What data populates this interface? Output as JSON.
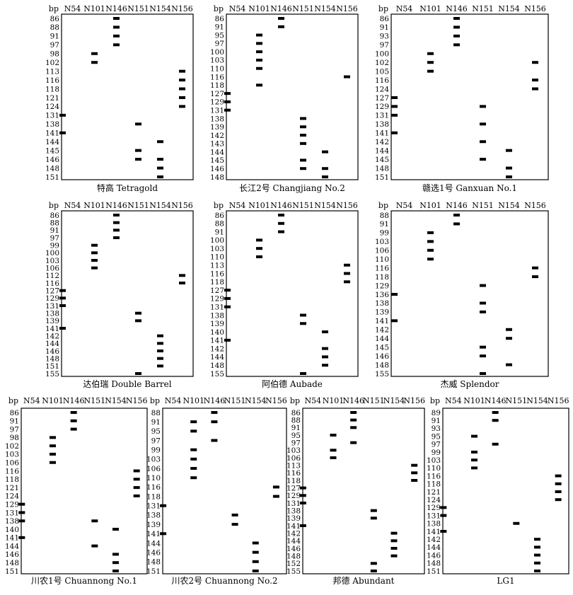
{
  "markers": {
    "header": [
      "bp",
      "N54",
      "N101",
      "N146",
      "N151",
      "N154",
      "N156"
    ]
  },
  "panels": [
    {
      "caption": "特高 Tetragold",
      "sizes": [
        "86",
        "88",
        "91",
        "97",
        "98",
        "102",
        "113",
        "116",
        "118",
        "121",
        "124",
        "131",
        "138",
        "141",
        "144",
        "145",
        "146",
        "148",
        "151"
      ],
      "bands": {
        "N54": [
          "131",
          "141"
        ],
        "N101": [
          "98",
          "102"
        ],
        "N146": [
          "86",
          "88",
          "91",
          "97"
        ],
        "N151": [
          "138",
          "145",
          "146"
        ],
        "N154": [
          "144",
          "146",
          "148",
          "151"
        ],
        "N156": [
          "113",
          "116",
          "118",
          "121",
          "124"
        ]
      }
    },
    {
      "caption": "长江2号 Changjiang No.2",
      "sizes": [
        "86",
        "91",
        "95",
        "97",
        "100",
        "103",
        "110",
        "116",
        "118",
        "127",
        "129",
        "131",
        "138",
        "139",
        "142",
        "143",
        "144",
        "145",
        "146",
        "148"
      ],
      "bands": {
        "N54": [
          "127",
          "129",
          "131"
        ],
        "N101": [
          "95",
          "97",
          "100",
          "103",
          "110",
          "118"
        ],
        "N146": [
          "86",
          "91"
        ],
        "N151": [
          "138",
          "139",
          "142",
          "143",
          "145",
          "146"
        ],
        "N154": [
          "144",
          "146",
          "148"
        ],
        "N156": [
          "116"
        ]
      }
    },
    {
      "caption": "赣选1号 Ganxuan No.1",
      "sizes": [
        "86",
        "91",
        "93",
        "97",
        "100",
        "102",
        "105",
        "116",
        "124",
        "127",
        "129",
        "131",
        "138",
        "141",
        "142",
        "144",
        "145",
        "148",
        "151"
      ],
      "bands": {
        "N54": [
          "127",
          "129",
          "131",
          "141"
        ],
        "N101": [
          "100",
          "102",
          "105"
        ],
        "N146": [
          "86",
          "91",
          "93",
          "97"
        ],
        "N151": [
          "129",
          "138",
          "142",
          "145"
        ],
        "N154": [
          "144",
          "148",
          "151"
        ],
        "N156": [
          "102",
          "116",
          "124"
        ]
      }
    },
    {
      "caption": "达伯瑞 Double Barrel",
      "sizes": [
        "86",
        "88",
        "91",
        "97",
        "99",
        "100",
        "103",
        "106",
        "112",
        "116",
        "127",
        "129",
        "131",
        "138",
        "139",
        "141",
        "142",
        "144",
        "146",
        "148",
        "151",
        "155"
      ],
      "bands": {
        "N54": [
          "127",
          "129",
          "131",
          "141"
        ],
        "N101": [
          "99",
          "100",
          "103",
          "106"
        ],
        "N146": [
          "86",
          "88",
          "91",
          "97"
        ],
        "N151": [
          "138",
          "139",
          "155"
        ],
        "N154": [
          "142",
          "144",
          "146",
          "148",
          "151"
        ],
        "N156": [
          "112",
          "116"
        ]
      }
    },
    {
      "caption": "阿伯德 Aubade",
      "sizes": [
        "86",
        "88",
        "91",
        "100",
        "103",
        "110",
        "113",
        "116",
        "118",
        "127",
        "129",
        "131",
        "138",
        "139",
        "140",
        "141",
        "142",
        "144",
        "148",
        "155"
      ],
      "bands": {
        "N54": [
          "127",
          "129",
          "131",
          "141"
        ],
        "N101": [
          "100",
          "103",
          "110"
        ],
        "N146": [
          "86",
          "88",
          "91"
        ],
        "N151": [
          "138",
          "139",
          "155"
        ],
        "N154": [
          "140",
          "142",
          "144",
          "148"
        ],
        "N156": [
          "113",
          "116",
          "118"
        ]
      }
    },
    {
      "caption": "杰威 Splendor",
      "sizes": [
        "88",
        "91",
        "99",
        "103",
        "106",
        "110",
        "116",
        "118",
        "129",
        "136",
        "138",
        "139",
        "141",
        "142",
        "144",
        "145",
        "146",
        "148",
        "155"
      ],
      "bands": {
        "N54": [
          "136",
          "141"
        ],
        "N101": [
          "99",
          "103",
          "106",
          "110"
        ],
        "N146": [
          "88",
          "91"
        ],
        "N151": [
          "129",
          "138",
          "139",
          "145",
          "146",
          "155"
        ],
        "N154": [
          "142",
          "144",
          "148"
        ],
        "N156": [
          "116",
          "118"
        ]
      }
    },
    {
      "caption": "川农1号 Chuannong No.1",
      "sizes": [
        "86",
        "91",
        "97",
        "98",
        "102",
        "103",
        "106",
        "116",
        "118",
        "121",
        "124",
        "129",
        "131",
        "138",
        "140",
        "141",
        "144",
        "146",
        "148",
        "151"
      ],
      "bands": {
        "N54": [
          "129",
          "131",
          "138",
          "141"
        ],
        "N101": [
          "98",
          "102",
          "103",
          "106"
        ],
        "N146": [
          "86",
          "91",
          "97"
        ],
        "N151": [
          "138",
          "144"
        ],
        "N154": [
          "140",
          "146",
          "148",
          "151"
        ],
        "N156": [
          "116",
          "118",
          "121",
          "124"
        ]
      }
    },
    {
      "caption": "川农2号 Chuannong No.2",
      "sizes": [
        "88",
        "91",
        "95",
        "97",
        "99",
        "103",
        "106",
        "110",
        "116",
        "118",
        "131",
        "138",
        "139",
        "141",
        "144",
        "146",
        "148",
        "151"
      ],
      "bands": {
        "N54": [
          "131",
          "141"
        ],
        "N101": [
          "91",
          "95",
          "99",
          "103",
          "106",
          "110"
        ],
        "N146": [
          "88",
          "91",
          "97"
        ],
        "N151": [
          "138",
          "139"
        ],
        "N154": [
          "144",
          "146",
          "148",
          "151"
        ],
        "N156": [
          "116",
          "118"
        ]
      }
    },
    {
      "caption": "邦德 Abundant",
      "sizes": [
        "86",
        "88",
        "91",
        "95",
        "97",
        "103",
        "106",
        "113",
        "116",
        "118",
        "127",
        "129",
        "131",
        "138",
        "139",
        "141",
        "142",
        "144",
        "146",
        "148",
        "152",
        "155"
      ],
      "bands": {
        "N54": [
          "127",
          "129",
          "131",
          "141"
        ],
        "N101": [
          "95",
          "103",
          "106"
        ],
        "N146": [
          "86",
          "88",
          "91",
          "97"
        ],
        "N151": [
          "138",
          "139",
          "152",
          "155"
        ],
        "N154": [
          "142",
          "144",
          "146",
          "148"
        ],
        "N156": [
          "113",
          "116",
          "118"
        ]
      }
    },
    {
      "caption": "LG1",
      "sizes": [
        "89",
        "91",
        "93",
        "95",
        "97",
        "99",
        "103",
        "110",
        "116",
        "118",
        "121",
        "124",
        "129",
        "131",
        "138",
        "141",
        "142",
        "144",
        "146",
        "148",
        "151"
      ],
      "bands": {
        "N54": [
          "129",
          "131",
          "141"
        ],
        "N101": [
          "95",
          "99",
          "103",
          "110"
        ],
        "N146": [
          "89",
          "91",
          "97"
        ],
        "N151": [
          "138"
        ],
        "N154": [
          "142",
          "144",
          "146",
          "148",
          "151"
        ],
        "N156": [
          "116",
          "118",
          "121",
          "124"
        ]
      }
    }
  ]
}
